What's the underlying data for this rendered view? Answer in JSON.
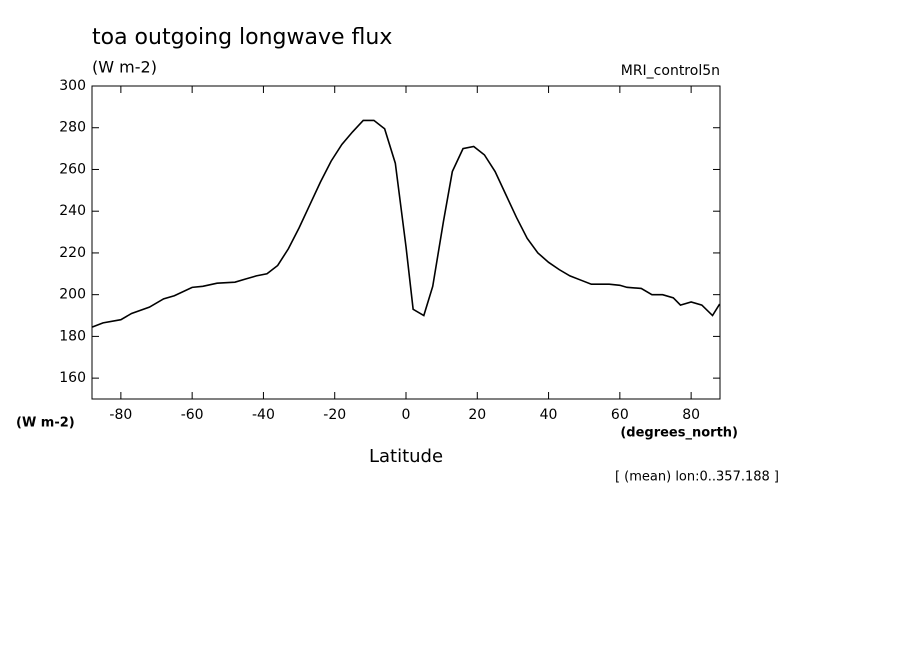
{
  "chart_data": {
    "type": "line",
    "title": "toa outgoing longwave flux",
    "units": "(W m-2)",
    "dataset": "MRI_control5n",
    "ylabel": "(W m-2)",
    "xunits": "(degrees_north)",
    "xlabel": "Latitude",
    "note": "[ (mean) lon:0..357.188 ]",
    "x": [
      -88,
      -85,
      -80,
      -77,
      -72,
      -68,
      -65,
      -60,
      -57,
      -53,
      -48,
      -45,
      -42,
      -39,
      -36,
      -33,
      -30,
      -27,
      -24,
      -21,
      -18,
      -15,
      -12,
      -9,
      -6,
      -3,
      0,
      2,
      5,
      7.5,
      10.5,
      13,
      16,
      19,
      22,
      25,
      28,
      31,
      34,
      37,
      40,
      43,
      46,
      49,
      52,
      57,
      60,
      62,
      66,
      69,
      72,
      75,
      77,
      80,
      83,
      86,
      88
    ],
    "series": [
      {
        "color": "#000000",
        "values": [
          184.5,
          186.5,
          188,
          191,
          194,
          198,
          199.5,
          203.5,
          204,
          205.5,
          206,
          207.5,
          209,
          210,
          214,
          222,
          232,
          243,
          254,
          264,
          272,
          278,
          283.5,
          283.5,
          279.5,
          263,
          223,
          193,
          190,
          204,
          235,
          259,
          270,
          271,
          267,
          259,
          248,
          237,
          227,
          220,
          215.5,
          212,
          209,
          207,
          205,
          205,
          204.5,
          203.5,
          203,
          200,
          200,
          198.5,
          195,
          196.5,
          195,
          190,
          195.5
        ]
      }
    ],
    "xlim": [
      -88.1,
      88.1
    ],
    "xticks": [
      -80,
      -60,
      -40,
      -20,
      0,
      20,
      40,
      60,
      80
    ],
    "ylim": [
      150,
      300
    ],
    "yticks": [
      160,
      180,
      200,
      220,
      240,
      260,
      280,
      300
    ]
  }
}
